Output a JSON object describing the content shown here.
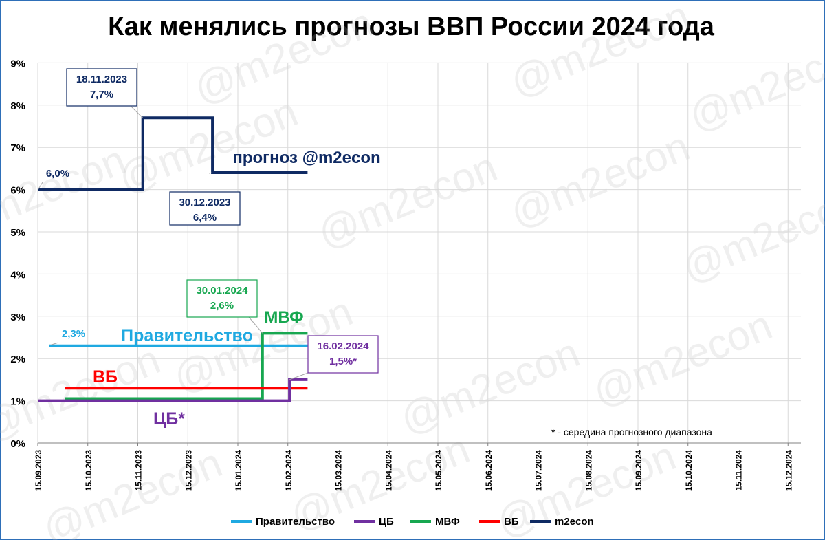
{
  "title": "Как менялись прогнозы ВВП России 2024 года",
  "watermark": "@m2econ",
  "note": "* - середина прогнозного диапазона",
  "chart_data": {
    "type": "line",
    "title": "Как менялись прогнозы ВВП России 2024 года",
    "ylim": [
      0,
      9
    ],
    "y_ticks": [
      "0%",
      "1%",
      "2%",
      "3%",
      "4%",
      "5%",
      "6%",
      "7%",
      "8%",
      "9%"
    ],
    "x_ticks": [
      "15.09.2023",
      "15.10.2023",
      "15.11.2023",
      "15.12.2023",
      "15.01.2024",
      "15.02.2024",
      "15.03.2024",
      "15.04.2024",
      "15.05.2024",
      "15.06.2024",
      "15.07.2024",
      "15.08.2024",
      "15.09.2024",
      "15.10.2024",
      "15.11.2024",
      "15.12.2024"
    ],
    "grid": true,
    "legend_position": "bottom",
    "series": [
      {
        "name": "Правительство",
        "color": "#1fa9e1",
        "inline_label": "Правительство",
        "points": [
          [
            "2023-09-22",
            2.3
          ],
          [
            "2024-02-27",
            2.3
          ]
        ]
      },
      {
        "name": "ЦБ",
        "color": "#7030a0",
        "inline_label": "ЦБ*",
        "points": [
          [
            "2023-09-15",
            1.0
          ],
          [
            "2024-02-16",
            1.0
          ],
          [
            "2024-02-16",
            1.5
          ],
          [
            "2024-02-27",
            1.5
          ]
        ]
      },
      {
        "name": "МВФ",
        "color": "#17a750",
        "inline_label": "МВФ",
        "points": [
          [
            "2023-10-01",
            1.05
          ],
          [
            "2024-01-30",
            1.05
          ],
          [
            "2024-01-30",
            2.6
          ],
          [
            "2024-02-27",
            2.6
          ]
        ]
      },
      {
        "name": "ВБ",
        "color": "#ff0000",
        "inline_label": "ВБ",
        "points": [
          [
            "2023-10-01",
            1.3
          ],
          [
            "2024-02-27",
            1.3
          ]
        ]
      },
      {
        "name": "m2econ",
        "color": "#0f2a63",
        "inline_label": "прогноз @m2econ",
        "points": [
          [
            "2023-09-15",
            6.0
          ],
          [
            "2023-11-18",
            6.0
          ],
          [
            "2023-11-18",
            7.7
          ],
          [
            "2023-12-30",
            7.7
          ],
          [
            "2023-12-30",
            6.4
          ],
          [
            "2024-02-27",
            6.4
          ]
        ]
      }
    ],
    "annotations": [
      {
        "text": "2,3%",
        "color": "#1fa9e1",
        "boxed": false,
        "x": "2023-09-22",
        "y": 2.3
      },
      {
        "text": "6,0%",
        "color": "#0f2a63",
        "boxed": false,
        "x": "2023-09-15",
        "y": 6.0
      },
      {
        "lines": [
          "18.11.2023",
          "7,7%"
        ],
        "color": "#0f2a63",
        "boxed": true,
        "x": "2023-11-18",
        "y": 7.7
      },
      {
        "lines": [
          "30.12.2023",
          "6,4%"
        ],
        "color": "#0f2a63",
        "boxed": true,
        "x": "2023-12-30",
        "y": 6.4
      },
      {
        "lines": [
          "30.01.2024",
          "2,6%"
        ],
        "color": "#17a750",
        "boxed": true,
        "x": "2024-01-30",
        "y": 2.6
      },
      {
        "lines": [
          "16.02.2024",
          "1,5%*"
        ],
        "color": "#7030a0",
        "boxed": true,
        "x": "2024-02-16",
        "y": 1.5
      }
    ]
  }
}
